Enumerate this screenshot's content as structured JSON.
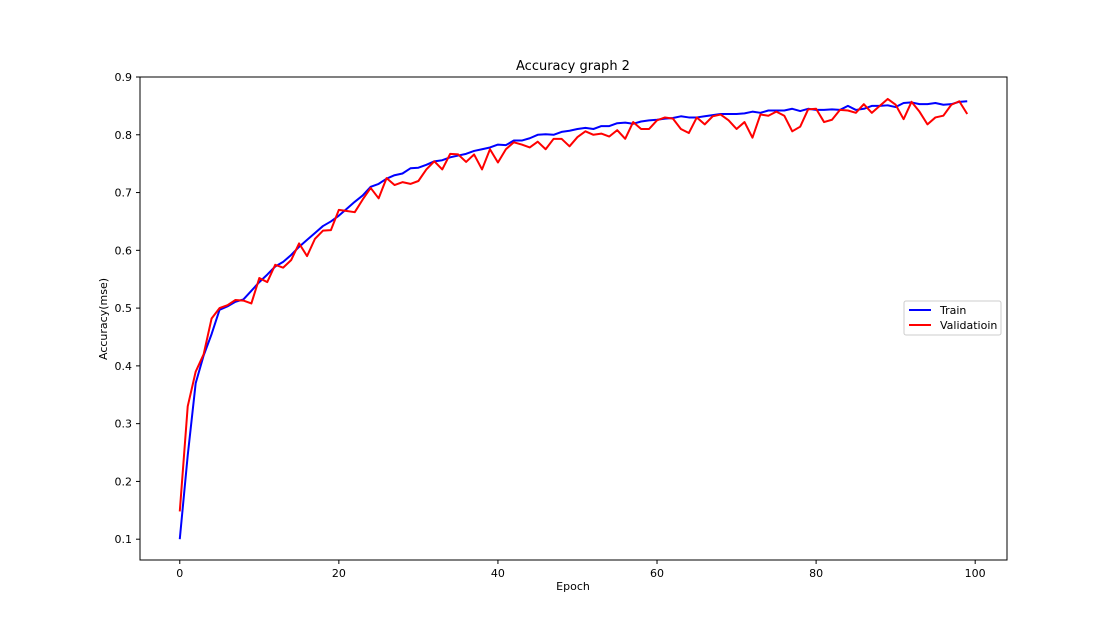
{
  "chart_data": {
    "type": "line",
    "title": "Accuracy graph 2",
    "xlabel": "Epoch",
    "ylabel": "Accuracy(mse)",
    "xlim": [
      -5,
      104
    ],
    "ylim": [
      0.064,
      0.9
    ],
    "xticks": [
      0,
      20,
      40,
      60,
      80,
      100
    ],
    "xtick_labels": [
      "0",
      "20",
      "40",
      "60",
      "80",
      "100"
    ],
    "yticks": [
      0.1,
      0.2,
      0.3,
      0.4,
      0.5,
      0.6,
      0.7,
      0.8,
      0.9
    ],
    "ytick_labels": [
      "0.1",
      "0.2",
      "0.3",
      "0.4",
      "0.5",
      "0.6",
      "0.7",
      "0.8",
      "0.9"
    ],
    "grid": false,
    "legend_position": "center-right",
    "x": [
      0,
      1,
      2,
      3,
      4,
      5,
      6,
      7,
      8,
      9,
      10,
      11,
      12,
      13,
      14,
      15,
      16,
      17,
      18,
      19,
      20,
      21,
      22,
      23,
      24,
      25,
      26,
      27,
      28,
      29,
      30,
      31,
      32,
      33,
      34,
      35,
      36,
      37,
      38,
      39,
      40,
      41,
      42,
      43,
      44,
      45,
      46,
      47,
      48,
      49,
      50,
      51,
      52,
      53,
      54,
      55,
      56,
      57,
      58,
      59,
      60,
      61,
      62,
      63,
      64,
      65,
      66,
      67,
      68,
      69,
      70,
      71,
      72,
      73,
      74,
      75,
      76,
      77,
      78,
      79,
      80,
      81,
      82,
      83,
      84,
      85,
      86,
      87,
      88,
      89,
      90,
      91,
      92,
      93,
      94,
      95,
      96,
      97,
      98,
      99
    ],
    "series": [
      {
        "name": "Train",
        "color": "#0000ff",
        "values": [
          0.1,
          0.245,
          0.37,
          0.418,
          0.455,
          0.497,
          0.503,
          0.511,
          0.515,
          0.53,
          0.545,
          0.558,
          0.572,
          0.58,
          0.592,
          0.606,
          0.618,
          0.63,
          0.642,
          0.65,
          0.66,
          0.672,
          0.684,
          0.695,
          0.71,
          0.715,
          0.724,
          0.73,
          0.733,
          0.742,
          0.743,
          0.748,
          0.754,
          0.756,
          0.761,
          0.764,
          0.767,
          0.772,
          0.775,
          0.778,
          0.783,
          0.782,
          0.79,
          0.79,
          0.794,
          0.8,
          0.801,
          0.8,
          0.805,
          0.807,
          0.81,
          0.812,
          0.81,
          0.815,
          0.815,
          0.82,
          0.821,
          0.819,
          0.823,
          0.825,
          0.826,
          0.828,
          0.829,
          0.832,
          0.83,
          0.83,
          0.832,
          0.834,
          0.836,
          0.836,
          0.836,
          0.837,
          0.84,
          0.838,
          0.842,
          0.842,
          0.842,
          0.845,
          0.841,
          0.845,
          0.843,
          0.843,
          0.844,
          0.843,
          0.85,
          0.843,
          0.845,
          0.85,
          0.85,
          0.851,
          0.848,
          0.855,
          0.856,
          0.853,
          0.853,
          0.855,
          0.852,
          0.853,
          0.857,
          0.858
        ]
      },
      {
        "name": "Validatioin",
        "color": "#ff0000",
        "values": [
          0.148,
          0.33,
          0.39,
          0.42,
          0.482,
          0.5,
          0.505,
          0.514,
          0.513,
          0.508,
          0.552,
          0.545,
          0.575,
          0.57,
          0.583,
          0.612,
          0.59,
          0.62,
          0.634,
          0.635,
          0.67,
          0.668,
          0.666,
          0.688,
          0.708,
          0.69,
          0.725,
          0.713,
          0.718,
          0.715,
          0.72,
          0.74,
          0.754,
          0.74,
          0.767,
          0.766,
          0.753,
          0.766,
          0.74,
          0.775,
          0.752,
          0.775,
          0.787,
          0.783,
          0.778,
          0.788,
          0.775,
          0.793,
          0.793,
          0.78,
          0.796,
          0.806,
          0.8,
          0.802,
          0.797,
          0.808,
          0.793,
          0.822,
          0.81,
          0.81,
          0.825,
          0.83,
          0.828,
          0.81,
          0.803,
          0.83,
          0.818,
          0.832,
          0.835,
          0.825,
          0.81,
          0.822,
          0.795,
          0.835,
          0.833,
          0.84,
          0.833,
          0.806,
          0.814,
          0.844,
          0.845,
          0.822,
          0.826,
          0.843,
          0.842,
          0.838,
          0.853,
          0.838,
          0.85,
          0.862,
          0.852,
          0.827,
          0.857,
          0.84,
          0.818,
          0.83,
          0.833,
          0.852,
          0.858,
          0.836
        ]
      }
    ]
  }
}
